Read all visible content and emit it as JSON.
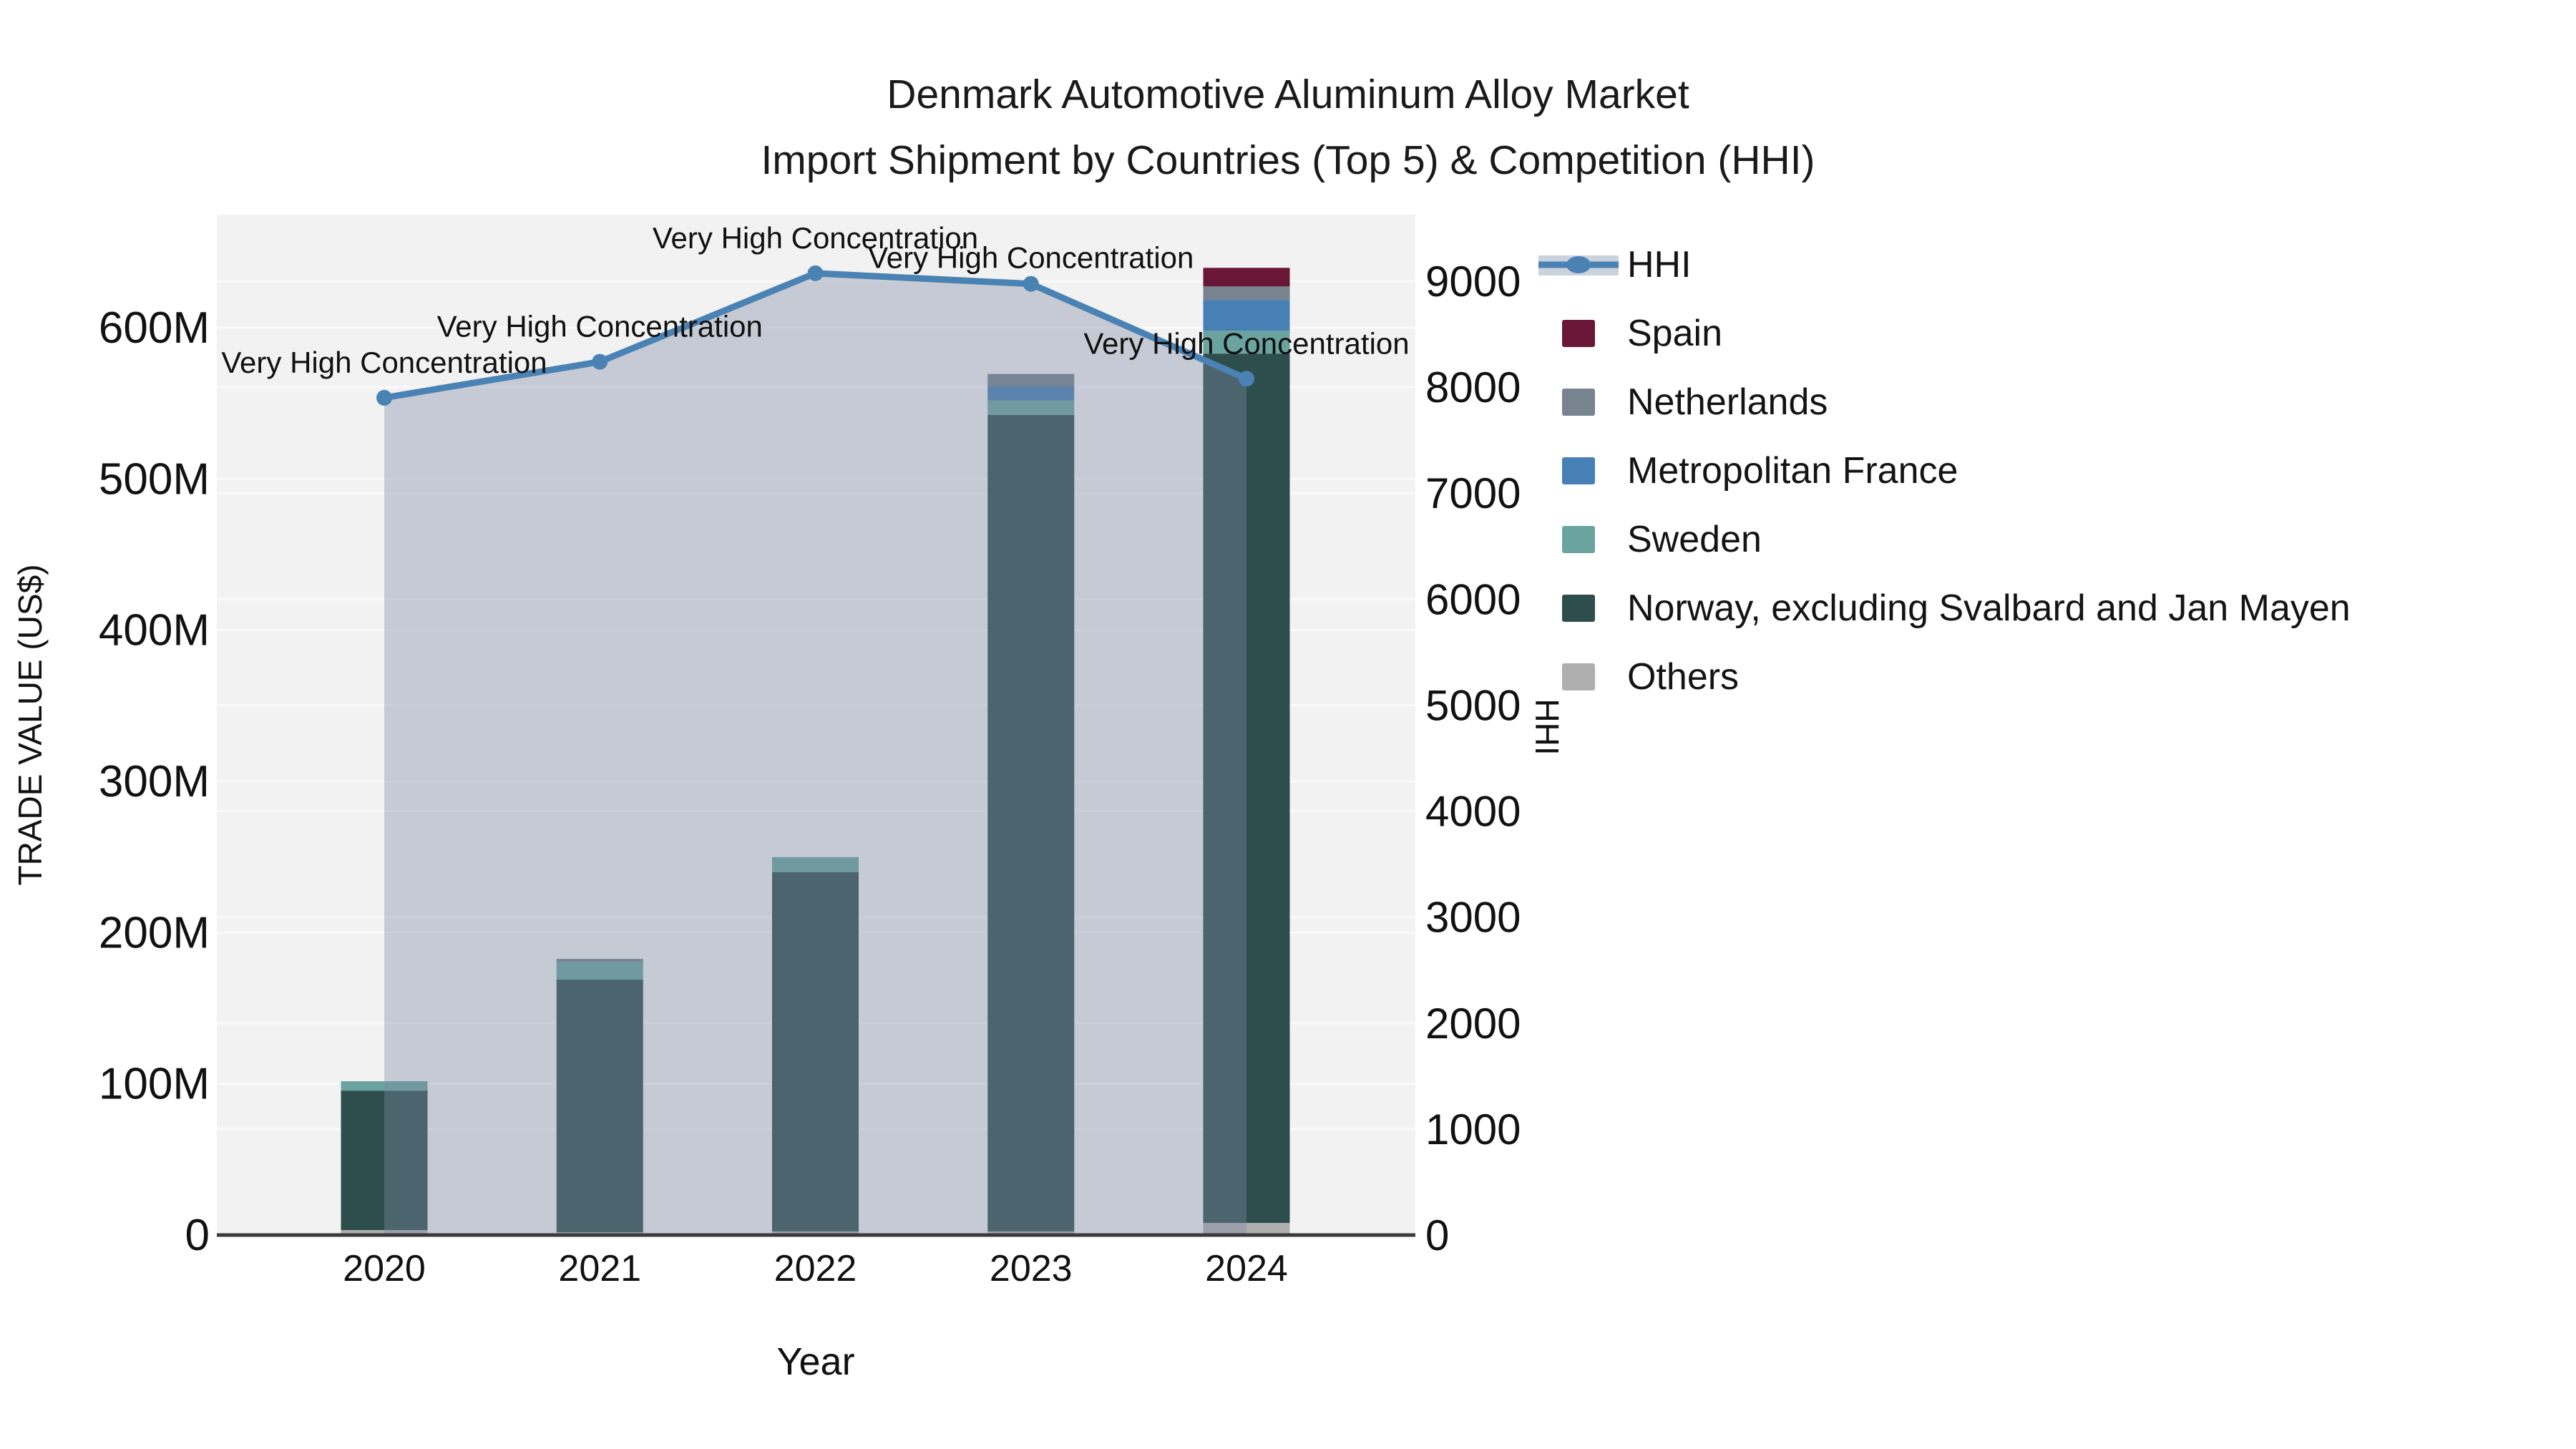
{
  "title": {
    "line1": "Denmark Automotive Aluminum Alloy Market",
    "line2": "Import Shipment by Countries (Top 5) & Competition (HHI)"
  },
  "colors": {
    "hhi_line": "#4a82b4",
    "hhi_fill": "rgba(124,138,164,0.38)",
    "hhi_legend_band": "#c9d2dd",
    "spain": "#6a1637",
    "netherlands": "#77848f",
    "france": "#4780b4",
    "sweden": "#6aa39f",
    "norway": "#2e4e4d",
    "others": "#aeaeae",
    "plot_bg": "#f2f2f2",
    "gridline": "#fafafa",
    "axis_line": "#3a3a3a",
    "text": "#111111"
  },
  "legend": {
    "items": [
      {
        "label": "HHI",
        "type": "line",
        "color": "#4a82b4"
      },
      {
        "label": "Spain",
        "type": "swatch",
        "color": "#6a1637"
      },
      {
        "label": "Netherlands",
        "type": "swatch",
        "color": "#77848f"
      },
      {
        "label": "Metropolitan France",
        "type": "swatch",
        "color": "#4780b4"
      },
      {
        "label": "Sweden",
        "type": "swatch",
        "color": "#6aa39f"
      },
      {
        "label": "Norway, excluding Svalbard and Jan Mayen",
        "type": "swatch",
        "color": "#2e4e4d"
      },
      {
        "label": "Others",
        "type": "swatch",
        "color": "#aeaeae"
      }
    ]
  },
  "axes": {
    "y_left": {
      "title": "TRADE VALUE (US$)",
      "ticks": [
        {
          "label": "0",
          "value": 0
        },
        {
          "label": "100M",
          "value": 100
        },
        {
          "label": "200M",
          "value": 200
        },
        {
          "label": "300M",
          "value": 300
        },
        {
          "label": "400M",
          "value": 400
        },
        {
          "label": "500M",
          "value": 500
        },
        {
          "label": "600M",
          "value": 600
        }
      ]
    },
    "y_right": {
      "title": "HHI",
      "ticks": [
        {
          "label": "0",
          "value": 0
        },
        {
          "label": "1000",
          "value": 1000
        },
        {
          "label": "2000",
          "value": 2000
        },
        {
          "label": "3000",
          "value": 3000
        },
        {
          "label": "4000",
          "value": 4000
        },
        {
          "label": "5000",
          "value": 5000
        },
        {
          "label": "6000",
          "value": 6000
        },
        {
          "label": "7000",
          "value": 7000
        },
        {
          "label": "8000",
          "value": 8000
        },
        {
          "label": "9000",
          "value": 9000
        }
      ]
    },
    "x_axis": {
      "title": "Year",
      "categories": [
        "2020",
        "2021",
        "2022",
        "2023",
        "2024"
      ]
    }
  },
  "chart_data": {
    "type": "bar+line",
    "title": "Denmark Automotive Aluminum Alloy Market — Import Shipment by Countries (Top 5) & Competition (HHI)",
    "categories": [
      "2020",
      "2021",
      "2022",
      "2023",
      "2024"
    ],
    "bar_value_unit": "USD millions",
    "stack_order_note": "series listed bottom-to-top of the stacked bars",
    "series": [
      {
        "name": "Others",
        "color": "#aeaeae",
        "values": [
          3.3,
          1.9,
          2.4,
          2.4,
          8.0
        ]
      },
      {
        "name": "Norway, excluding Svalbard and Jan Mayen",
        "color": "#2e4e4d",
        "values": [
          92.2,
          167.0,
          237.6,
          540.0,
          574.9
        ]
      },
      {
        "name": "Sweden",
        "color": "#6aa39f",
        "values": [
          6.2,
          11.8,
          9.9,
          9.5,
          15.1
        ]
      },
      {
        "name": "Metropolitan France",
        "color": "#4780b4",
        "values": [
          0,
          0,
          0,
          9.5,
          20.3
        ]
      },
      {
        "name": "Netherlands",
        "color": "#77848f",
        "values": [
          0,
          1.9,
          0,
          8.0,
          9.0
        ]
      },
      {
        "name": "Spain",
        "color": "#6a1637",
        "values": [
          0,
          0,
          0,
          0,
          12.3
        ]
      }
    ],
    "bar_totals": [
      101.7,
      182.6,
      249.9,
      569.4,
      639.6
    ],
    "line_series": {
      "name": "HHI",
      "values": [
        7900,
        8240,
        9075,
        8975,
        8080
      ],
      "axis": "right",
      "area_fill": true
    },
    "annotations": [
      {
        "category": "2020",
        "text": "Very High Concentration",
        "offset_y": -35
      },
      {
        "category": "2021",
        "text": "Very High Concentration",
        "offset_y": -35
      },
      {
        "category": "2022",
        "text": "Very High Concentration",
        "offset_y": -35
      },
      {
        "category": "2023",
        "text": "Very High Concentration",
        "offset_y": -22
      },
      {
        "category": "2024",
        "text": "Very High Concentration",
        "offset_y": -35
      }
    ],
    "ylim_left": [
      0,
      675
    ],
    "ylim_right": [
      0,
      9630
    ],
    "xlabel": "Year",
    "ylabel_left": "TRADE VALUE (US$)",
    "ylabel_right": "HHI",
    "grid": true,
    "legend_position": "upper right, outside plot"
  }
}
